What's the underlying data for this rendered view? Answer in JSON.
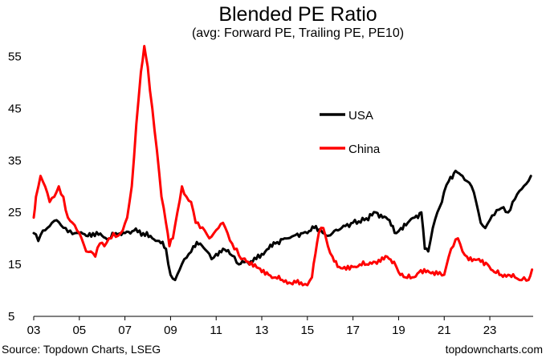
{
  "chart_data": {
    "type": "line",
    "title": "Blended PE Ratio",
    "subtitle": "(avg: Forward PE, Trailing PE, PE10)",
    "xlabel": "",
    "ylabel": "",
    "xlim": [
      2003,
      2024.9
    ],
    "ylim": [
      5,
      60
    ],
    "yticks": [
      5,
      15,
      25,
      35,
      45,
      55
    ],
    "xticks": [
      {
        "value": 2003,
        "label": "03"
      },
      {
        "value": 2005,
        "label": "05"
      },
      {
        "value": 2007,
        "label": "07"
      },
      {
        "value": 2009,
        "label": "09"
      },
      {
        "value": 2011,
        "label": "11"
      },
      {
        "value": 2013,
        "label": "13"
      },
      {
        "value": 2015,
        "label": "15"
      },
      {
        "value": 2017,
        "label": "17"
      },
      {
        "value": 2019,
        "label": "19"
      },
      {
        "value": 2021,
        "label": "21"
      },
      {
        "value": 2023,
        "label": "23"
      }
    ],
    "grid": false,
    "legend_position": "center-right",
    "series": [
      {
        "name": "USA",
        "color": "#000000",
        "x": [
          2003.0,
          2003.2,
          2003.4,
          2003.6,
          2003.8,
          2004.0,
          2004.2,
          2004.4,
          2004.6,
          2004.8,
          2005.0,
          2005.3,
          2005.6,
          2006.0,
          2006.3,
          2006.6,
          2007.0,
          2007.4,
          2007.8,
          2008.2,
          2008.5,
          2008.8,
          2009.0,
          2009.2,
          2009.4,
          2009.6,
          2009.8,
          2010.0,
          2010.3,
          2010.6,
          2010.8,
          2011.0,
          2011.3,
          2011.6,
          2011.8,
          2012.0,
          2012.3,
          2012.6,
          2013.0,
          2013.3,
          2013.6,
          2014.0,
          2014.4,
          2014.8,
          2015.0,
          2015.3,
          2015.6,
          2015.9,
          2016.1,
          2016.5,
          2017.0,
          2017.5,
          2018.0,
          2018.3,
          2018.6,
          2018.9,
          2019.1,
          2019.4,
          2019.7,
          2020.0,
          2020.15,
          2020.3,
          2020.5,
          2020.7,
          2020.9,
          2021.0,
          2021.2,
          2021.5,
          2021.8,
          2022.0,
          2022.2,
          2022.4,
          2022.6,
          2022.8,
          2023.0,
          2023.2,
          2023.4,
          2023.6,
          2023.8,
          2024.0,
          2024.2,
          2024.4,
          2024.6,
          2024.8
        ],
        "values": [
          21,
          19.5,
          21.5,
          22,
          23,
          23.5,
          22.5,
          22,
          21.5,
          21,
          21,
          20.5,
          21,
          20.5,
          20,
          21,
          21,
          21.5,
          21,
          20,
          19.5,
          18,
          13,
          12,
          14,
          16,
          17,
          18.5,
          19,
          17.5,
          16,
          17,
          18,
          17,
          16.5,
          15,
          15.5,
          15.5,
          17,
          18,
          19,
          20,
          20.5,
          21,
          21,
          22,
          21.5,
          20.5,
          21,
          22,
          23,
          23.5,
          25,
          24,
          23.5,
          21,
          22,
          23,
          24,
          25,
          18,
          17.5,
          22,
          25,
          27,
          29,
          31,
          33,
          32,
          31,
          30,
          27,
          23,
          22,
          23.5,
          24.5,
          25.5,
          26,
          25,
          27,
          28.5,
          29.5,
          30.5,
          32
        ]
      },
      {
        "name": "China",
        "color": "#ff0000",
        "x": [
          2003.0,
          2003.1,
          2003.3,
          2003.5,
          2003.7,
          2003.9,
          2004.1,
          2004.3,
          2004.5,
          2004.7,
          2004.9,
          2005.1,
          2005.3,
          2005.5,
          2005.7,
          2005.9,
          2006.1,
          2006.3,
          2006.5,
          2006.7,
          2006.9,
          2007.1,
          2007.3,
          2007.5,
          2007.7,
          2007.85,
          2008.0,
          2008.2,
          2008.4,
          2008.6,
          2008.8,
          2008.95,
          2009.1,
          2009.3,
          2009.5,
          2009.7,
          2009.9,
          2010.1,
          2010.3,
          2010.5,
          2010.7,
          2010.9,
          2011.1,
          2011.3,
          2011.5,
          2011.7,
          2011.9,
          2012.1,
          2012.4,
          2012.7,
          2013.0,
          2013.3,
          2013.6,
          2013.9,
          2014.2,
          2014.5,
          2014.8,
          2015.0,
          2015.2,
          2015.35,
          2015.5,
          2015.7,
          2015.9,
          2016.1,
          2016.4,
          2016.7,
          2017.0,
          2017.3,
          2017.6,
          2017.9,
          2018.2,
          2018.5,
          2018.8,
          2019.0,
          2019.3,
          2019.6,
          2019.9,
          2020.2,
          2020.5,
          2020.8,
          2021.0,
          2021.2,
          2021.4,
          2021.6,
          2021.8,
          2022.0,
          2022.3,
          2022.6,
          2022.9,
          2023.2,
          2023.5,
          2023.8,
          2024.1,
          2024.3,
          2024.5,
          2024.7,
          2024.85
        ],
        "values": [
          24,
          28,
          32,
          30,
          27,
          28,
          30,
          28,
          24,
          23,
          21.5,
          20,
          17.5,
          17.5,
          16.5,
          19,
          18.5,
          20,
          21,
          20.5,
          21.5,
          24,
          30,
          42,
          52,
          57,
          53,
          45,
          37,
          28,
          23,
          18.5,
          20,
          25,
          30,
          28,
          27,
          23,
          22,
          21.5,
          20,
          21,
          22,
          23,
          21,
          19,
          18,
          16,
          15.5,
          15,
          13.5,
          13,
          12.5,
          12,
          11.5,
          11.5,
          11,
          11,
          12.5,
          17,
          21,
          22,
          18.5,
          16.5,
          14.5,
          14,
          14.5,
          15,
          15,
          15.5,
          15.5,
          16.5,
          15.5,
          13.5,
          12.5,
          12.5,
          13.5,
          13.5,
          13.5,
          13.5,
          13,
          16.5,
          18.5,
          20,
          17.5,
          16.5,
          16,
          15.5,
          15,
          13.5,
          13,
          13,
          12.5,
          12,
          12.5,
          12,
          14
        ]
      }
    ]
  },
  "footer": {
    "source": "Source: Topdown Charts, LSEG",
    "site": "topdowncharts.com"
  }
}
